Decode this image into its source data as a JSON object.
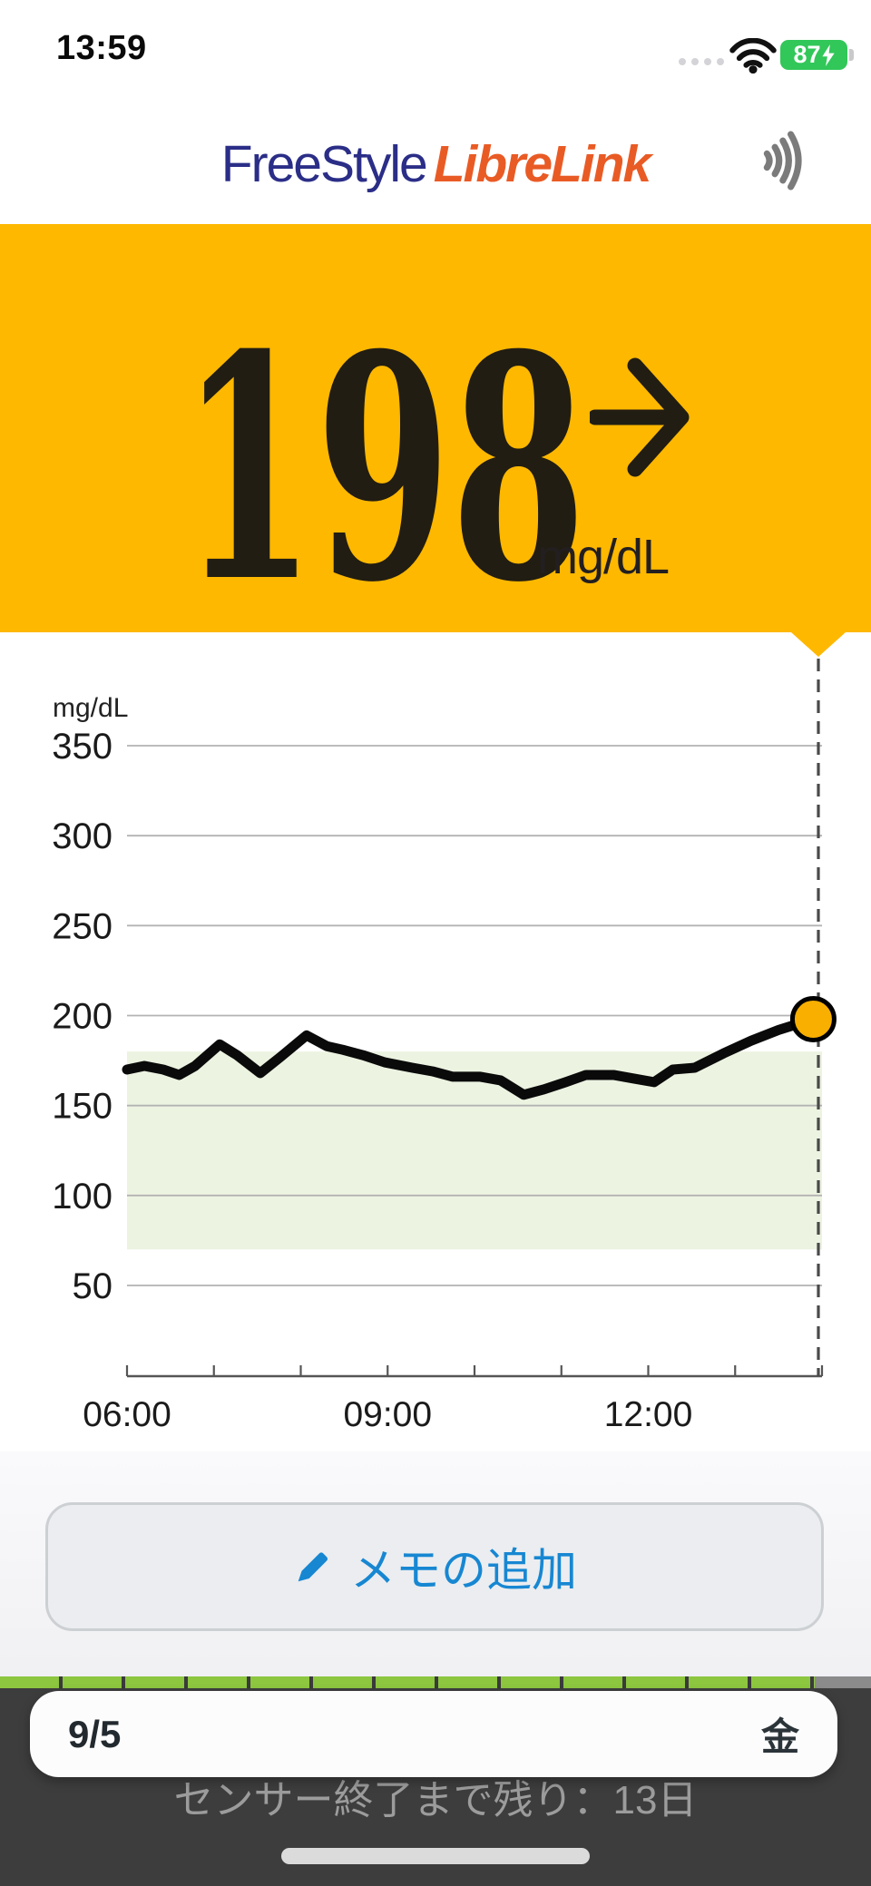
{
  "status_bar": {
    "time": "13:59",
    "battery_percent": "87"
  },
  "header": {
    "logo_primary": "FreeStyle",
    "logo_secondary": "LibreLink"
  },
  "reading": {
    "value": "198",
    "unit": "mg/dL",
    "trend_arrow": "→"
  },
  "chart_data": {
    "type": "line",
    "ylabel": "mg/dL",
    "yticks": [
      350,
      300,
      250,
      200,
      150,
      100,
      50
    ],
    "xticks": [
      "06:00",
      "09:00",
      "12:00"
    ],
    "x_range": [
      "06:00",
      "14:00"
    ],
    "ylim": [
      0,
      400
    ],
    "grid": true,
    "target_range": [
      70,
      180
    ],
    "series": [
      {
        "name": "glucose_mg_dl",
        "points": [
          [
            "06:00",
            170
          ],
          [
            "06:12",
            172
          ],
          [
            "06:25",
            170
          ],
          [
            "06:36",
            167
          ],
          [
            "06:47",
            172
          ],
          [
            "07:04",
            184
          ],
          [
            "07:16",
            178
          ],
          [
            "07:32",
            168
          ],
          [
            "07:46",
            177
          ],
          [
            "08:04",
            189
          ],
          [
            "08:18",
            183
          ],
          [
            "08:29",
            181
          ],
          [
            "08:43",
            178
          ],
          [
            "08:58",
            174
          ],
          [
            "09:17",
            171
          ],
          [
            "09:31",
            169
          ],
          [
            "09:45",
            166
          ],
          [
            "10:04",
            166
          ],
          [
            "10:18",
            164
          ],
          [
            "10:34",
            156
          ],
          [
            "10:48",
            159
          ],
          [
            "11:03",
            163
          ],
          [
            "11:17",
            167
          ],
          [
            "11:36",
            167
          ],
          [
            "11:50",
            165
          ],
          [
            "12:04",
            163
          ],
          [
            "12:17",
            170
          ],
          [
            "12:32",
            171
          ],
          [
            "12:52",
            179
          ],
          [
            "13:11",
            186
          ],
          [
            "13:30",
            192
          ],
          [
            "13:42",
            195
          ],
          [
            "13:54",
            198
          ]
        ]
      }
    ],
    "current_value": 198,
    "legend_position": "none"
  },
  "add_note": {
    "label": "メモの追加"
  },
  "date_bar": {
    "date": "9/5",
    "weekday": "金"
  },
  "sensor": {
    "message": "センサー終了まで残り：13日",
    "segments_remaining": 13,
    "segments_total": 14
  },
  "colors": {
    "banner": "#FFB800",
    "marker_fill": "#F8AF00",
    "line": "#0A0A0A",
    "band": "#ECF3E1",
    "grid": "#B3B3B3",
    "axis": "#555555",
    "dashed": "#4A4A4A",
    "sensor_green": "#8DC63F",
    "accent_blue": "#1787D2",
    "battery_green": "#32C759",
    "logo_navy": "#2B2E87",
    "logo_orange": "#E95B25",
    "tick_text": "#1A1A1A"
  }
}
